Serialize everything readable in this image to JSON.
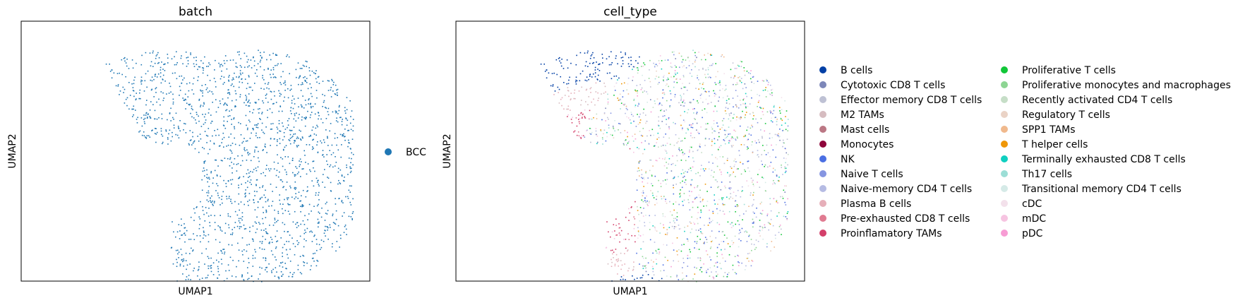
{
  "chart_data": [
    {
      "type": "scatter",
      "title": "batch",
      "xlabel": "UMAP1",
      "ylabel": "UMAP2",
      "grid": false,
      "ticks": false,
      "legend": {
        "placement": "right",
        "entries": [
          {
            "name": "BCC",
            "color": "#1f77b4"
          }
        ]
      }
    },
    {
      "type": "scatter",
      "title": "cell_type",
      "xlabel": "UMAP1",
      "ylabel": "UMAP2",
      "grid": false,
      "ticks": false,
      "legend": {
        "placement": "right",
        "columns": 2,
        "entries": [
          {
            "name": "B cells",
            "color": "#023fa5"
          },
          {
            "name": "Cytotoxic CD8 T cells",
            "color": "#7d87b9"
          },
          {
            "name": "Effector memory CD8 T cells",
            "color": "#bec1d4"
          },
          {
            "name": "M2 TAMs",
            "color": "#d6bcc0"
          },
          {
            "name": "Mast cells",
            "color": "#bb7784"
          },
          {
            "name": "Monocytes",
            "color": "#8e063b"
          },
          {
            "name": "NK",
            "color": "#4a6fe3"
          },
          {
            "name": "Naive T cells",
            "color": "#8595e1"
          },
          {
            "name": "Naive-memory CD4 T cells",
            "color": "#b5bbe3"
          },
          {
            "name": "Plasma B cells",
            "color": "#e6afb9"
          },
          {
            "name": "Pre-exhausted CD8 T cells",
            "color": "#e07b91"
          },
          {
            "name": "Proinflamatory TAMs",
            "color": "#d33f6a"
          },
          {
            "name": "Proliferative T cells",
            "color": "#11c638"
          },
          {
            "name": "Proliferative monocytes and macrophages",
            "color": "#8dd593"
          },
          {
            "name": "Recently activated CD4 T cells",
            "color": "#c6dec7"
          },
          {
            "name": "Regulatory T cells",
            "color": "#ead3c6"
          },
          {
            "name": "SPP1 TAMs",
            "color": "#f0b98d"
          },
          {
            "name": "T helper cells",
            "color": "#ef9708"
          },
          {
            "name": "Terminally exhausted CD8 T cells",
            "color": "#0fcfc0"
          },
          {
            "name": "Th17 cells",
            "color": "#9cded6"
          },
          {
            "name": "Transitional memory CD4 T cells",
            "color": "#d5eae7"
          },
          {
            "name": "cDC",
            "color": "#f3e1eb"
          },
          {
            "name": "mDC",
            "color": "#f6c4e1"
          },
          {
            "name": "pDC",
            "color": "#f79cd4"
          }
        ]
      }
    }
  ]
}
